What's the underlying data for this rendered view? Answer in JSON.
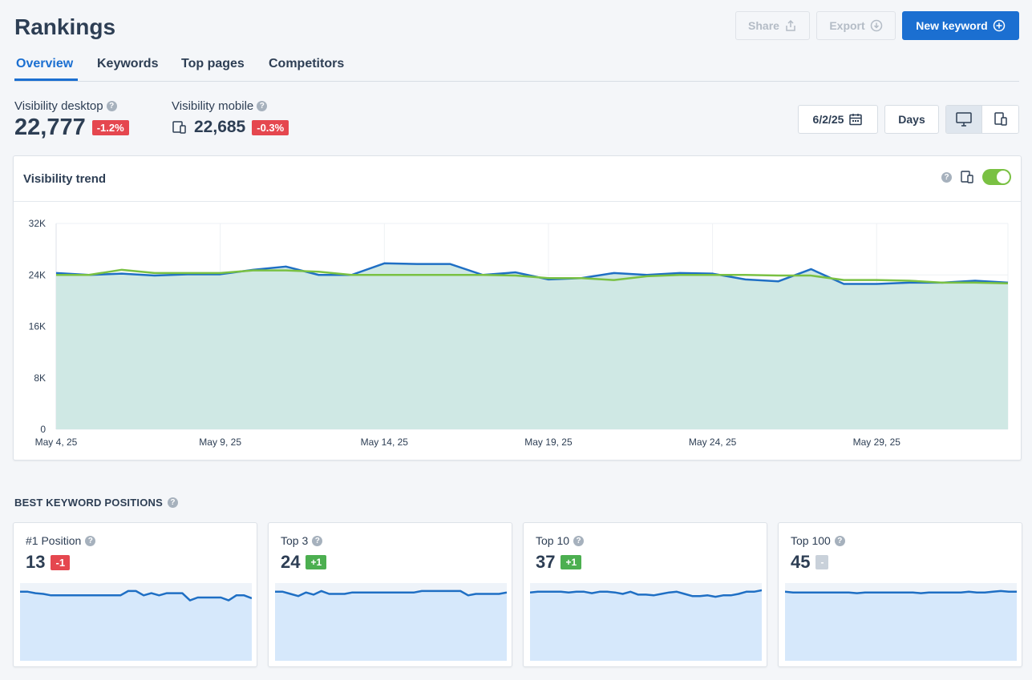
{
  "header": {
    "title": "Rankings",
    "share_label": "Share",
    "export_label": "Export",
    "new_keyword_label": "New keyword"
  },
  "tabs": [
    {
      "label": "Overview",
      "active": true
    },
    {
      "label": "Keywords",
      "active": false
    },
    {
      "label": "Top pages",
      "active": false
    },
    {
      "label": "Competitors",
      "active": false
    }
  ],
  "metrics": {
    "desktop": {
      "label": "Visibility desktop",
      "value": "22,777",
      "change": "-1.2%"
    },
    "mobile": {
      "label": "Visibility mobile",
      "value": "22,685",
      "change": "-0.3%"
    }
  },
  "controls": {
    "date": "6/2/25",
    "interval": "Days",
    "device_selected": "desktop"
  },
  "trend": {
    "title": "Visibility trend",
    "toggle_on": true
  },
  "colors": {
    "accent": "#1b6fd1",
    "desktop_line": "#1f6fc4",
    "mobile_line": "#7ac143",
    "area_fill": "#cfe8e4",
    "negative": "#e5474f",
    "positive": "#4caf50"
  },
  "chart_data": {
    "type": "line",
    "title": "Visibility trend",
    "yticks": [
      "0",
      "8K",
      "16K",
      "24K",
      "32K"
    ],
    "xticks": [
      "May 4, 25",
      "May 9, 25",
      "May 14, 25",
      "May 19, 25",
      "May 24, 25",
      "May 29, 25"
    ],
    "ylim": [
      0,
      32000
    ],
    "x": [
      "May 4",
      "May 5",
      "May 6",
      "May 7",
      "May 8",
      "May 9",
      "May 10",
      "May 11",
      "May 12",
      "May 13",
      "May 14",
      "May 15",
      "May 16",
      "May 17",
      "May 18",
      "May 19",
      "May 20",
      "May 21",
      "May 22",
      "May 23",
      "May 24",
      "May 25",
      "May 26",
      "May 27",
      "May 28",
      "May 29",
      "May 30",
      "May 31",
      "Jun 1",
      "Jun 2"
    ],
    "series": [
      {
        "values": [
          24300,
          24000,
          24200,
          23900,
          24100,
          24100,
          24800,
          25300,
          24000,
          24000,
          25800,
          25700,
          25700,
          24000,
          24400,
          23300,
          23500,
          24300,
          24000,
          24300,
          24200,
          23300,
          23000,
          24900,
          22600,
          22600,
          22800,
          22800,
          23100,
          22800
        ]
      },
      {
        "values": [
          24000,
          24000,
          24800,
          24300,
          24300,
          24300,
          24700,
          24700,
          24500,
          24000,
          24000,
          24000,
          24000,
          24000,
          23900,
          23500,
          23500,
          23200,
          23800,
          24000,
          24000,
          24000,
          23900,
          23900,
          23200,
          23200,
          23100,
          22800,
          22800,
          22700
        ]
      }
    ]
  },
  "best_positions": {
    "title": "BEST KEYWORD POSITIONS",
    "cards": [
      {
        "label": "#1 Position",
        "value": "13",
        "change": "-1",
        "trend": "down",
        "spark": [
          12,
          12,
          14,
          15,
          17,
          17,
          17,
          17,
          17,
          17,
          17,
          17,
          17,
          17,
          11,
          11,
          17,
          14,
          17,
          14,
          14,
          14,
          24,
          20,
          20,
          20,
          20,
          24,
          17,
          17,
          21
        ]
      },
      {
        "label": "Top 3",
        "value": "24",
        "change": "+1",
        "trend": "up",
        "spark": [
          12,
          12,
          15,
          18,
          13,
          16,
          11,
          15,
          15,
          15,
          13,
          13,
          13,
          13,
          13,
          13,
          13,
          13,
          13,
          11,
          11,
          11,
          11,
          11,
          11,
          17,
          15,
          15,
          15,
          15,
          13
        ]
      },
      {
        "label": "Top 10",
        "value": "37",
        "change": "+1",
        "trend": "up",
        "spark": [
          13,
          12,
          12,
          12,
          12,
          13,
          12,
          12,
          14,
          12,
          12,
          13,
          15,
          12,
          16,
          16,
          17,
          15,
          13,
          12,
          15,
          18,
          18,
          17,
          19,
          17,
          17,
          15,
          12,
          12,
          10
        ]
      },
      {
        "label": "Top 100",
        "value": "45",
        "change": "-",
        "trend": "flat",
        "spark": [
          12,
          13,
          13,
          13,
          13,
          13,
          13,
          13,
          13,
          14,
          13,
          13,
          13,
          13,
          13,
          13,
          13,
          14,
          13,
          13,
          13,
          13,
          13,
          12,
          13,
          13,
          12,
          11,
          12,
          12
        ]
      }
    ]
  }
}
